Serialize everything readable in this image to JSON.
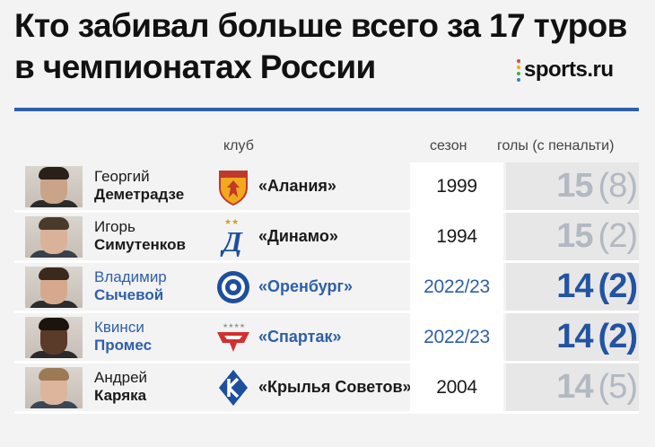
{
  "title": {
    "line1": "Кто забивал больше всего за 17 туров",
    "line2": "в чемпионатах России"
  },
  "brand": {
    "name": "sports.ru",
    "dot_colors": [
      "#e8423c",
      "#f5a623",
      "#3fae49",
      "#2f7fd1",
      "#9b59b6"
    ]
  },
  "colors": {
    "accent": "#2f5fa8",
    "dim_goals": "#b3b9c1"
  },
  "headers": {
    "club": "клуб",
    "season": "сезон",
    "goals": "голы (с пенальти)"
  },
  "rows": [
    {
      "first_name": "Георгий",
      "last_name": "Деметрадзе",
      "club": "«Алания»",
      "club_icon": "alania-crest-icon",
      "season": "1999",
      "goals": "15",
      "penalties": "(8)",
      "highlight": false
    },
    {
      "first_name": "Игорь",
      "last_name": "Симутенков",
      "club": "«Динамо»",
      "club_icon": "dynamo-crest-icon",
      "season": "1994",
      "goals": "15",
      "penalties": "(2)",
      "highlight": false
    },
    {
      "first_name": "Владимир",
      "last_name": "Сычевой",
      "club": "«Оренбург»",
      "club_icon": "orenburg-crest-icon",
      "season": "2022/23",
      "goals": "14",
      "penalties": "(2)",
      "highlight": true
    },
    {
      "first_name": "Квинси",
      "last_name": "Промес",
      "club": "«Спартак»",
      "club_icon": "spartak-crest-icon",
      "season": "2022/23",
      "goals": "14",
      "penalties": "(2)",
      "highlight": true
    },
    {
      "first_name": "Андрей",
      "last_name": "Каряка",
      "club": "«Крылья Советов»",
      "club_icon": "krylia-sovetov-crest-icon",
      "season": "2004",
      "goals": "14",
      "penalties": "(5)",
      "highlight": false
    }
  ]
}
